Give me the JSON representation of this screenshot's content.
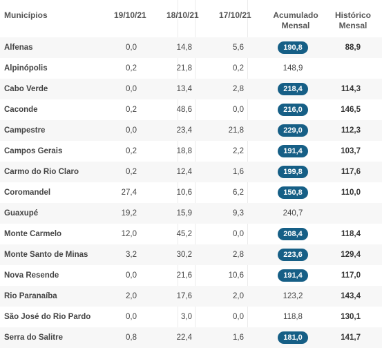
{
  "headers": {
    "municipios": "Municípios",
    "d1": "19/10/21",
    "d2": "18/10/21",
    "d3": "17/10/21",
    "acc_line1": "Acumulado",
    "acc_line2": "Mensal",
    "hist_line1": "Histórico",
    "hist_line2": "Mensal"
  },
  "colors": {
    "badge": "#165f86",
    "stripe": "#f7f7f7"
  },
  "rows": [
    {
      "name": "Alfenas",
      "d1": "0,0",
      "d2": "14,8",
      "d3": "5,6",
      "acc": "190,8",
      "badge": true,
      "hist": "88,9"
    },
    {
      "name": "Alpinópolis",
      "d1": "0,2",
      "d2": "21,8",
      "d3": "0,2",
      "acc": "148,9",
      "badge": false,
      "hist": ""
    },
    {
      "name": "Cabo Verde",
      "d1": "0,0",
      "d2": "13,4",
      "d3": "2,8",
      "acc": "218,4",
      "badge": true,
      "hist": "114,3"
    },
    {
      "name": "Caconde",
      "d1": "0,2",
      "d2": "48,6",
      "d3": "0,0",
      "acc": "216,0",
      "badge": true,
      "hist": "146,5"
    },
    {
      "name": "Campestre",
      "d1": "0,0",
      "d2": "23,4",
      "d3": "21,8",
      "acc": "229,0",
      "badge": true,
      "hist": "112,3"
    },
    {
      "name": "Campos Gerais",
      "d1": "0,2",
      "d2": "18,8",
      "d3": "2,2",
      "acc": "191,4",
      "badge": true,
      "hist": "103,7"
    },
    {
      "name": "Carmo do Rio Claro",
      "d1": "0,2",
      "d2": "12,4",
      "d3": "1,6",
      "acc": "199,8",
      "badge": true,
      "hist": "117,6"
    },
    {
      "name": "Coromandel",
      "d1": "27,4",
      "d2": "10,6",
      "d3": "6,2",
      "acc": "150,8",
      "badge": true,
      "hist": "110,0"
    },
    {
      "name": "Guaxupé",
      "d1": "19,2",
      "d2": "15,9",
      "d3": "9,3",
      "acc": "240,7",
      "badge": false,
      "hist": ""
    },
    {
      "name": "Monte Carmelo",
      "d1": "12,0",
      "d2": "45,2",
      "d3": "0,0",
      "acc": "208,4",
      "badge": true,
      "hist": "118,4"
    },
    {
      "name": "Monte Santo de Minas",
      "d1": "3,2",
      "d2": "30,2",
      "d3": "2,8",
      "acc": "223,6",
      "badge": true,
      "hist": "129,4"
    },
    {
      "name": "Nova Resende",
      "d1": "0,0",
      "d2": "21,6",
      "d3": "10,6",
      "acc": "191,4",
      "badge": true,
      "hist": "117,0"
    },
    {
      "name": "Rio Paranaíba",
      "d1": "2,0",
      "d2": "17,6",
      "d3": "2,0",
      "acc": "123,2",
      "badge": false,
      "hist": "143,4"
    },
    {
      "name": "São José do Rio Pardo",
      "d1": "0,0",
      "d2": "3,0",
      "d3": "0,0",
      "acc": "118,8",
      "badge": false,
      "hist": "130,1"
    },
    {
      "name": "Serra do Salitre",
      "d1": "0,8",
      "d2": "22,4",
      "d3": "1,6",
      "acc": "181,0",
      "badge": true,
      "hist": "141,7"
    }
  ]
}
